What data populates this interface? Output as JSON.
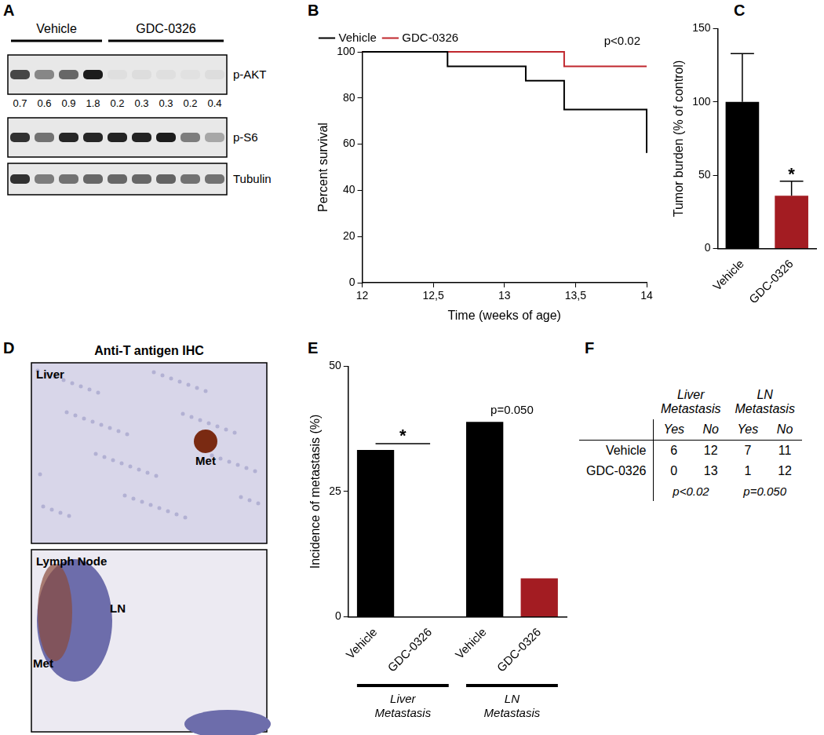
{
  "chart_data": [
    {
      "panel": "B",
      "type": "line",
      "xlabel": "Time (weeks of age)",
      "ylabel": "Percent survival",
      "series": [
        {
          "name": "Vehicle",
          "color": "#000000",
          "line_style": "stepped",
          "x": [
            12,
            12.6,
            13.15,
            13.42,
            14
          ],
          "values": [
            100,
            93.75,
            87.5,
            75,
            56.25
          ]
        },
        {
          "name": "GDC-0326",
          "color": "#c0272d",
          "line_style": "stepped",
          "x": [
            12,
            13.42,
            14
          ],
          "values": [
            100,
            93.75,
            93.75
          ]
        }
      ],
      "xlim": [
        12,
        14
      ],
      "xticks": [
        12,
        {
          "value": 12.5,
          "label": "12,5"
        },
        13,
        {
          "value": 13.5,
          "label": "13,5"
        },
        14
      ],
      "ylim": [
        0,
        100
      ],
      "yticks": [
        0,
        20,
        40,
        60,
        80,
        100
      ],
      "grid": false,
      "legend": "top-left",
      "annotations": [
        {
          "text": "p<0.02"
        }
      ]
    },
    {
      "panel": "C",
      "type": "bar",
      "ylabel": "Tumor burden (% of control)",
      "categories": [
        "Vehicle",
        "GDC-0326"
      ],
      "values": [
        100,
        36
      ],
      "errors": [
        33,
        10
      ],
      "colors": [
        "#000000",
        "#a31c22"
      ],
      "ylim": [
        0,
        150
      ],
      "yticks": [
        0,
        50,
        100,
        150
      ],
      "grid": false,
      "annotations": [
        {
          "text": "*",
          "category": "GDC-0326"
        }
      ]
    },
    {
      "panel": "E",
      "type": "bar",
      "ylabel": "Incidence of metastasis (%)",
      "categories": [
        "Vehicle",
        "GDC-0326",
        "Vehicle",
        "GDC-0326"
      ],
      "groups": [
        "Liver Metastasis",
        "LN Metastasis"
      ],
      "values": [
        33.3,
        0,
        38.9,
        7.7
      ],
      "colors": [
        "#000000",
        "#a31c22",
        "#000000",
        "#a31c22"
      ],
      "ylim": [
        0,
        50
      ],
      "yticks": [
        0,
        25,
        50
      ],
      "grid": false,
      "annotations": [
        {
          "text": "*",
          "group": "Liver Metastasis"
        },
        {
          "text": "p=0.050",
          "group": "LN Metastasis"
        }
      ]
    }
  ],
  "blot": {
    "panel": "A",
    "groups": [
      {
        "name": "Vehicle",
        "lanes": 4
      },
      {
        "name": "GDC-0326",
        "lanes": 5
      }
    ],
    "rows": [
      "p-AKT",
      "p-S6",
      "Tubulin"
    ],
    "quantification": [
      0.7,
      0.6,
      0.9,
      1.8,
      0.2,
      0.3,
      0.3,
      0.2,
      0.4
    ]
  },
  "ihc": {
    "panel": "D",
    "title": "Anti-T antigen IHC",
    "images": [
      {
        "tissue": "Liver",
        "labels": [
          "Met"
        ]
      },
      {
        "tissue": "Lymph Node",
        "labels": [
          "LN",
          "Met"
        ]
      }
    ]
  },
  "table": {
    "panel": "F",
    "columns": [
      "Liver Metastasis",
      "LN Metastasis"
    ],
    "subcolumns": [
      "Yes",
      "No"
    ],
    "rows": [
      {
        "name": "Vehicle",
        "values": [
          6,
          12,
          7,
          11
        ]
      },
      {
        "name": "GDC-0326",
        "values": [
          0,
          13,
          1,
          12
        ]
      }
    ],
    "p_values": [
      "p<0.02",
      "p=0.050"
    ]
  }
}
